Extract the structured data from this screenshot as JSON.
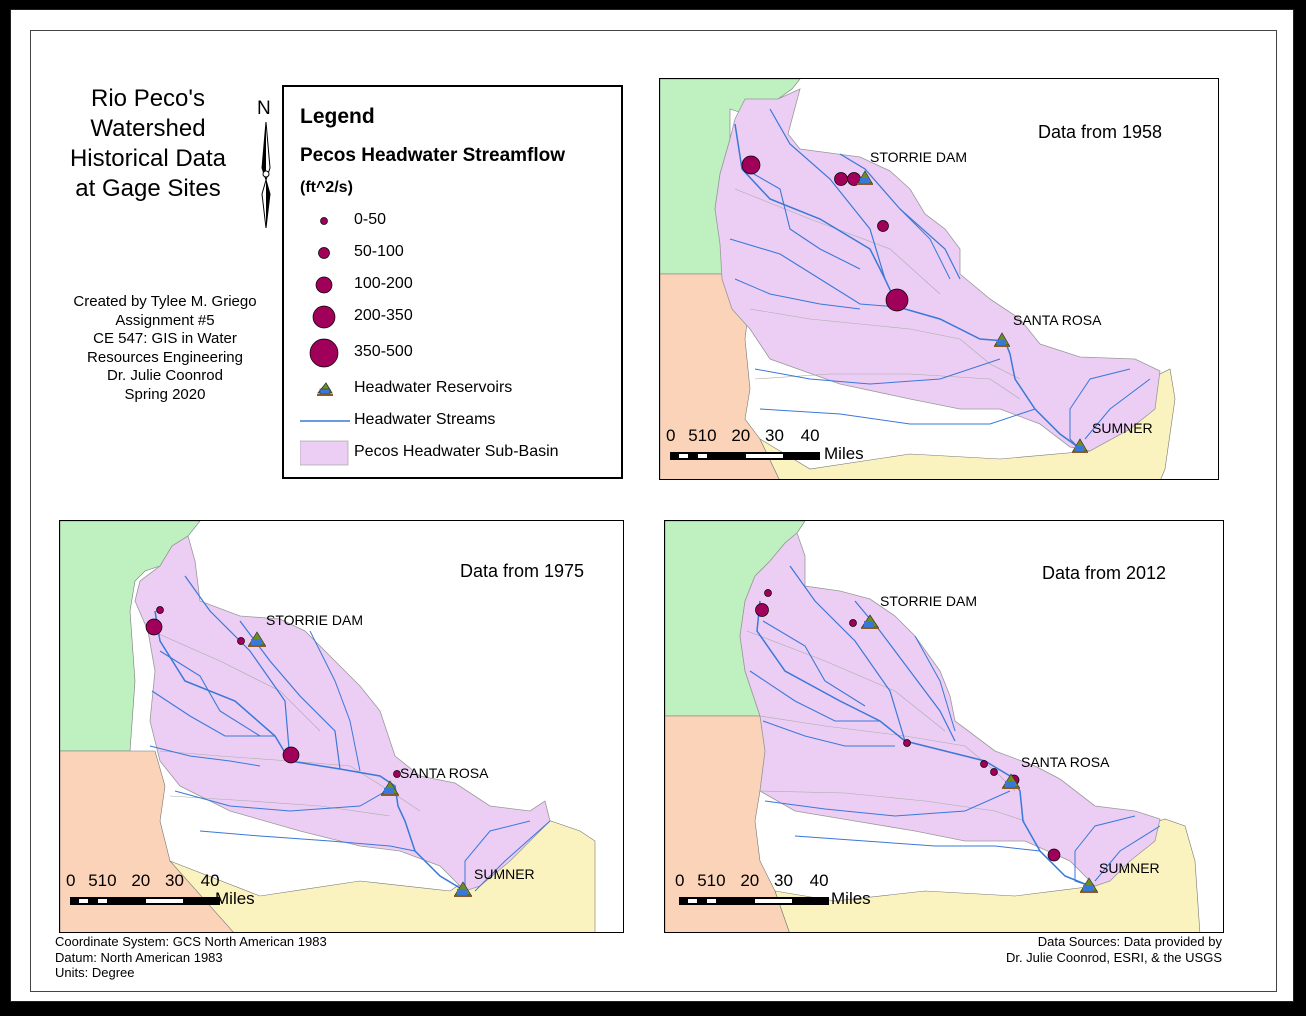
{
  "title": [
    "Rio Peco's",
    "Watershed",
    "Historical Data",
    "at Gage Sites"
  ],
  "north_label": "N",
  "credits": [
    "Created by Tylee M. Griego",
    "Assignment #5",
    "CE 547: GIS in Water",
    "Resources Engineering",
    "Dr. Julie Coonrod",
    "Spring 2020"
  ],
  "legend": {
    "title": "Legend",
    "subtitle": "Pecos Headwater Streamflow",
    "unit": "(ft^2/s)",
    "classes": [
      "0-50",
      "50-100",
      "100-200",
      "200-350",
      "350-500"
    ],
    "reservoirs": "Headwater Reservoirs",
    "streams": "Headwater Streams",
    "subbasin": "Pecos Headwater Sub-Basin"
  },
  "colors": {
    "gage": "#a0005a",
    "stream": "#3a78d8",
    "subbasin": "#eccef5",
    "green_region": "#bff0c0",
    "orange_region": "#fad3b8",
    "yellow_region": "#fbf3bf"
  },
  "maps": [
    {
      "year_label": "Data from 1958",
      "sites": [
        "STORRIE DAM",
        "SANTA ROSA",
        "SUMNER"
      ],
      "gage_classes": [
        "200-350",
        "100-200",
        "100-200",
        "50-100",
        "350-500"
      ]
    },
    {
      "year_label": "Data from 1975",
      "sites": [
        "STORRIE DAM",
        "SANTA ROSA",
        "SUMNER"
      ],
      "gage_classes": [
        "0-50",
        "200-350",
        "0-50",
        "200-350",
        "0-50"
      ]
    },
    {
      "year_label": "Data from 2012",
      "sites": [
        "STORRIE DAM",
        "SANTA ROSA",
        "SUMNER"
      ],
      "gage_classes": [
        "0-50",
        "100-200",
        "0-50",
        "0-50",
        "0-50",
        "0-50",
        "50-100",
        "50-100"
      ]
    }
  ],
  "scale": {
    "ticks": [
      "0",
      "5",
      "10",
      "20",
      "30",
      "40"
    ],
    "unit": "Miles"
  },
  "footer_left": [
    "Coordinate System: GCS North American 1983",
    "Datum: North American 1983",
    "Units: Degree"
  ],
  "footer_right": [
    "Data Sources: Data provided by",
    "Dr. Julie Coonrod, ESRI, & the USGS"
  ]
}
